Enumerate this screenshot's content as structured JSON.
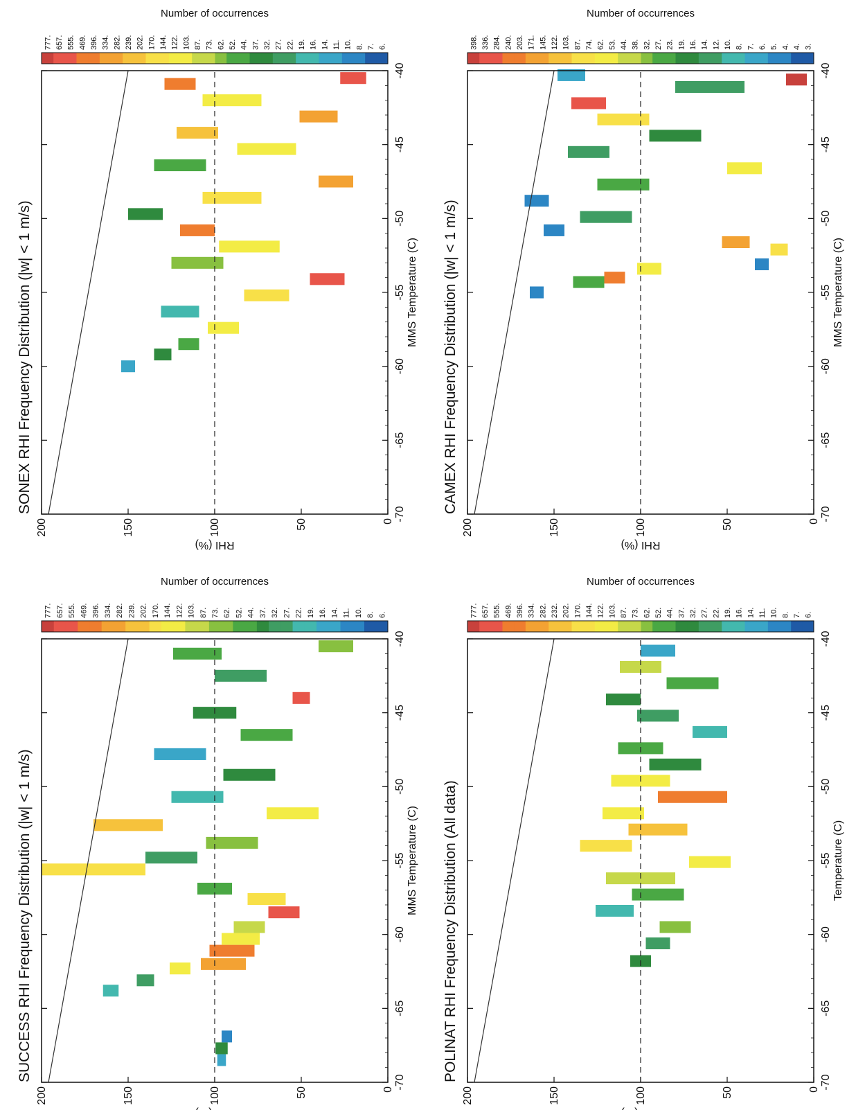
{
  "figure": {
    "colors": {
      "scale": [
        "#1f5aa6",
        "#2c86c4",
        "#3aa6c8",
        "#43b8ae",
        "#3f9d63",
        "#2f8a3e",
        "#4aa844",
        "#88c040",
        "#c6d84a",
        "#f3ec45",
        "#f8e048",
        "#f6c23c",
        "#f3a233",
        "#ef7d2f",
        "#e8554a",
        "#c8413c"
      ],
      "frame": "#111111",
      "reference_line": "#333333"
    }
  },
  "chart_data": [
    {
      "panel": "top-left",
      "type": "heatmap",
      "title": "SUCCESS RHI Frequency Distribution (|w| < 1 m/s)",
      "xlabel": "MMS Temperature (C)",
      "ylabel": "RHI (%)",
      "colorbar_label": "Number of occurrences",
      "xlim": [
        -70,
        -40
      ],
      "ylim": [
        0,
        200
      ],
      "x_ticks": [
        "-70",
        "-65",
        "-60",
        "-55",
        "-50",
        "-45",
        "-40"
      ],
      "y_ticks": [
        "0",
        "50",
        "100",
        "150",
        "200"
      ],
      "colorbar_ticks": [
        "6.",
        "8.",
        "10.",
        "11.",
        "14.",
        "16.",
        "19.",
        "22.",
        "27.",
        "32.",
        "37.",
        "44.",
        "52.",
        "62.",
        "73.",
        "87.",
        "103.",
        "122.",
        "144.",
        "170.",
        "202.",
        "239.",
        "282.",
        "334.",
        "396.",
        "469.",
        "555.",
        "657.",
        "777."
      ],
      "dashed_line_rhi": 100,
      "saturation_line": {
        "x": [
          -70,
          -40
        ],
        "y": [
          196,
          150
        ]
      },
      "cells": [
        [
          -68.5,
          96,
          5,
          "#3aa6c8"
        ],
        [
          -67.7,
          96,
          7,
          "#2f8a3e"
        ],
        [
          -66.9,
          93,
          6,
          "#2c86c4"
        ],
        [
          -63.8,
          160,
          9,
          "#43b8ae"
        ],
        [
          -63.1,
          140,
          10,
          "#3f9d63"
        ],
        [
          -62.3,
          120,
          12,
          "#f3ec45"
        ],
        [
          -62,
          95,
          26,
          "#f3a233"
        ],
        [
          -61.1,
          90,
          26,
          "#ef7d2f"
        ],
        [
          -60.3,
          85,
          22,
          "#f3ec45"
        ],
        [
          -59.5,
          80,
          18,
          "#c6d84a"
        ],
        [
          -58.5,
          60,
          18,
          "#e8554a"
        ],
        [
          -57.6,
          70,
          22,
          "#f8e048"
        ],
        [
          -56.9,
          100,
          20,
          "#4aa844"
        ],
        [
          -55.6,
          170,
          60,
          "#f8e048"
        ],
        [
          -54.8,
          125,
          30,
          "#3f9d63"
        ],
        [
          -53.8,
          90,
          30,
          "#88c040"
        ],
        [
          -52.6,
          150,
          40,
          "#f6c23c"
        ],
        [
          -51.8,
          55,
          30,
          "#f3ec45"
        ],
        [
          -50.7,
          110,
          30,
          "#43b8ae"
        ],
        [
          -49.2,
          80,
          30,
          "#2f8a3e"
        ],
        [
          -47.8,
          120,
          30,
          "#3aa6c8"
        ],
        [
          -46.5,
          70,
          30,
          "#4aa844"
        ],
        [
          -45,
          100,
          25,
          "#2f8a3e"
        ],
        [
          -44,
          50,
          10,
          "#e8554a"
        ],
        [
          -42.5,
          85,
          30,
          "#3f9d63"
        ],
        [
          -41,
          110,
          28,
          "#4aa844"
        ],
        [
          -40.5,
          30,
          20,
          "#88c040"
        ]
      ]
    },
    {
      "panel": "top-right",
      "type": "heatmap",
      "title": "SONEX RHI Frequency Distribution (|w| < 1 m/s)",
      "xlabel": "MMS Temperature (C)",
      "ylabel": "RHI (%)",
      "colorbar_label": "Number of occurrences",
      "xlim": [
        -70,
        -40
      ],
      "ylim": [
        0,
        200
      ],
      "x_ticks": [
        "-70",
        "-65",
        "-60",
        "-55",
        "-50",
        "-45",
        "-40"
      ],
      "y_ticks": [
        "0",
        "50",
        "100",
        "150",
        "200"
      ],
      "colorbar_ticks": [
        "6.",
        "7.",
        "8.",
        "10.",
        "11.",
        "14.",
        "16.",
        "19.",
        "22.",
        "27.",
        "32.",
        "37.",
        "44.",
        "52.",
        "62.",
        "73.",
        "87.",
        "103.",
        "122.",
        "144.",
        "170.",
        "202.",
        "239.",
        "282.",
        "334.",
        "396.",
        "469.",
        "555.",
        "657.",
        "777."
      ],
      "dashed_line_rhi": 100,
      "saturation_line": {
        "x": [
          -70,
          -40
        ],
        "y": [
          196,
          150
        ]
      },
      "cells": [
        [
          -60,
          150,
          8,
          "#3aa6c8"
        ],
        [
          -59.2,
          130,
          10,
          "#2f8a3e"
        ],
        [
          -58.5,
          115,
          12,
          "#4aa844"
        ],
        [
          -57.4,
          95,
          18,
          "#f3ec45"
        ],
        [
          -56.3,
          120,
          22,
          "#43b8ae"
        ],
        [
          -55.2,
          70,
          26,
          "#f8e048"
        ],
        [
          -54.1,
          35,
          20,
          "#e8554a"
        ],
        [
          -53,
          110,
          30,
          "#88c040"
        ],
        [
          -51.9,
          80,
          35,
          "#f3ec45"
        ],
        [
          -50.8,
          110,
          20,
          "#ef7d2f"
        ],
        [
          -49.7,
          140,
          20,
          "#2f8a3e"
        ],
        [
          -48.6,
          90,
          34,
          "#f8e048"
        ],
        [
          -47.5,
          30,
          20,
          "#f3a233"
        ],
        [
          -46.4,
          120,
          30,
          "#4aa844"
        ],
        [
          -45.3,
          70,
          34,
          "#f3ec45"
        ],
        [
          -44.2,
          110,
          24,
          "#f6c23c"
        ],
        [
          -43.1,
          40,
          22,
          "#f3a233"
        ],
        [
          -42,
          90,
          34,
          "#f3ec45"
        ],
        [
          -40.9,
          120,
          18,
          "#ef7d2f"
        ],
        [
          -40.5,
          20,
          15,
          "#e8554a"
        ]
      ]
    },
    {
      "panel": "bottom-left",
      "type": "heatmap",
      "title": "POLINAT RHI Frequency Distribution (All data)",
      "xlabel": "Temperature (C)",
      "ylabel": "RHI (%)",
      "colorbar_label": "Number of occurrences",
      "xlim": [
        -70,
        -40
      ],
      "ylim": [
        0,
        200
      ],
      "x_ticks": [
        "-70",
        "-65",
        "-60",
        "-55",
        "-50",
        "-45",
        "-40"
      ],
      "y_ticks": [
        "0",
        "50",
        "100",
        "150",
        "200"
      ],
      "colorbar_ticks": [
        "6.",
        "7.",
        "8.",
        "10.",
        "11.",
        "14.",
        "16.",
        "19.",
        "22.",
        "27.",
        "32.",
        "37.",
        "44.",
        "52.",
        "62.",
        "73.",
        "87.",
        "103.",
        "122.",
        "144.",
        "170.",
        "202.",
        "232.",
        "282.",
        "334.",
        "396.",
        "469.",
        "555.",
        "657.",
        "777."
      ],
      "dashed_line_rhi": 100,
      "saturation_line": {
        "x": [
          -70,
          -40
        ],
        "y": [
          196,
          150
        ]
      },
      "cells": [
        [
          -61.8,
          100,
          12,
          "#2f8a3e"
        ],
        [
          -60.6,
          90,
          14,
          "#3f9d63"
        ],
        [
          -59.5,
          80,
          18,
          "#88c040"
        ],
        [
          -58.4,
          115,
          22,
          "#43b8ae"
        ],
        [
          -57.3,
          90,
          30,
          "#4aa844"
        ],
        [
          -56.2,
          100,
          40,
          "#c6d84a"
        ],
        [
          -55.1,
          60,
          24,
          "#f3ec45"
        ],
        [
          -54,
          120,
          30,
          "#f8e048"
        ],
        [
          -52.9,
          90,
          34,
          "#f6c23c"
        ],
        [
          -51.8,
          110,
          24,
          "#f3ec45"
        ],
        [
          -50.7,
          70,
          40,
          "#ef7d2f"
        ],
        [
          -49.6,
          100,
          34,
          "#f3ec45"
        ],
        [
          -48.5,
          80,
          30,
          "#2f8a3e"
        ],
        [
          -47.4,
          100,
          26,
          "#4aa844"
        ],
        [
          -46.3,
          60,
          20,
          "#43b8ae"
        ],
        [
          -45.2,
          90,
          24,
          "#3f9d63"
        ],
        [
          -44.1,
          110,
          20,
          "#2f8a3e"
        ],
        [
          -43,
          70,
          30,
          "#4aa844"
        ],
        [
          -41.9,
          100,
          24,
          "#c6d84a"
        ],
        [
          -40.8,
          90,
          20,
          "#3aa6c8"
        ]
      ]
    },
    {
      "panel": "bottom-right",
      "type": "heatmap",
      "title": "CAMEX RHI Frequency Distribution (|w| < 1 m/s)",
      "xlabel": "MMS Temperature (C)",
      "ylabel": "RHI (%)",
      "colorbar_label": "Number of occurrences",
      "xlim": [
        -70,
        -40
      ],
      "ylim": [
        0,
        200
      ],
      "x_ticks": [
        "-70",
        "-65",
        "-60",
        "-55",
        "-50",
        "-45",
        "-40"
      ],
      "y_ticks": [
        "0",
        "50",
        "100",
        "150",
        "200"
      ],
      "colorbar_ticks": [
        "3.",
        "4.",
        "4.",
        "5.",
        "6.",
        "7.",
        "8.",
        "10.",
        "12.",
        "14.",
        "16.",
        "19.",
        "23.",
        "27.",
        "32.",
        "38.",
        "44.",
        "53.",
        "62.",
        "74.",
        "87.",
        "103.",
        "122.",
        "145.",
        "171.",
        "203.",
        "240.",
        "284.",
        "336.",
        "398."
      ],
      "dashed_line_rhi": 100,
      "saturation_line": {
        "x": [
          -70,
          -40
        ],
        "y": [
          196,
          150
        ]
      },
      "cells": [
        [
          -55,
          160,
          8,
          "#2c86c4"
        ],
        [
          -54.3,
          130,
          18,
          "#4aa844"
        ],
        [
          -54,
          115,
          12,
          "#ef7d2f"
        ],
        [
          -53.4,
          95,
          14,
          "#f3ec45"
        ],
        [
          -53.1,
          30,
          8,
          "#2c86c4"
        ],
        [
          -52.1,
          20,
          10,
          "#f8e048"
        ],
        [
          -51.6,
          45,
          16,
          "#f3a233"
        ],
        [
          -50.8,
          150,
          12,
          "#2c86c4"
        ],
        [
          -49.9,
          120,
          30,
          "#3f9d63"
        ],
        [
          -48.8,
          160,
          14,
          "#2c86c4"
        ],
        [
          -47.7,
          110,
          30,
          "#4aa844"
        ],
        [
          -46.6,
          40,
          20,
          "#f3ec45"
        ],
        [
          -45.5,
          130,
          24,
          "#3f9d63"
        ],
        [
          -44.4,
          80,
          30,
          "#2f8a3e"
        ],
        [
          -43.3,
          110,
          30,
          "#f8e048"
        ],
        [
          -42.2,
          130,
          20,
          "#e8554a"
        ],
        [
          -41.1,
          60,
          40,
          "#3f9d63"
        ],
        [
          -40.6,
          10,
          12,
          "#c8413c"
        ],
        [
          -40.3,
          140,
          16,
          "#3aa6c8"
        ]
      ]
    }
  ]
}
